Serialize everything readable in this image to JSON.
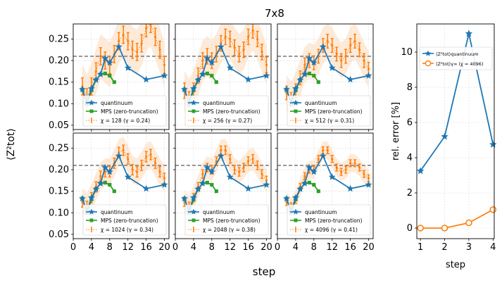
{
  "figure": {
    "title": "7x8",
    "ylabel": "⟨Z²tot⟩",
    "xlabel": "step"
  },
  "colors": {
    "quantinuum": "#1f77b4",
    "mps": "#2ca02c",
    "chi": "#ff7f0e",
    "band": "#fdd9b8",
    "dashed": "#808080",
    "grid": "#d8d8d8"
  },
  "chart_data": [
    {
      "type": "line",
      "panel": "chi-128",
      "xlim": [
        0,
        21
      ],
      "ylim": [
        0.04,
        0.285
      ],
      "yticks": [
        0.05,
        0.1,
        0.15,
        0.2,
        0.25
      ],
      "xticks": [
        0,
        4,
        8,
        12,
        16,
        20
      ],
      "reference_line": 0.21,
      "legend": [
        "quantinuum",
        "MPS (zero-truncation)",
        "χ = 128 (γ = 0.24)"
      ],
      "series": [
        {
          "name": "quantinuum",
          "x": [
            2,
            3,
            4,
            5,
            6,
            7,
            8,
            10,
            12,
            16,
            20
          ],
          "y": [
            0.133,
            0.102,
            0.135,
            0.155,
            0.168,
            0.205,
            0.195,
            0.232,
            0.183,
            0.156,
            0.165
          ]
        },
        {
          "name": "MPS (zero-truncation)",
          "x": [
            2,
            3,
            4,
            5,
            6,
            7,
            8,
            9
          ],
          "y": [
            0.133,
            0.1,
            0.131,
            0.155,
            0.168,
            0.17,
            0.165,
            0.15
          ]
        },
        {
          "name": "χ = 128 (γ = 0.24)",
          "x": [
            2,
            3,
            4,
            5,
            6,
            7,
            8,
            9,
            10,
            11,
            12,
            13,
            14,
            15,
            16,
            17,
            18,
            19,
            20
          ],
          "y": [
            0.14,
            0.115,
            0.14,
            0.175,
            0.21,
            0.2,
            0.19,
            0.215,
            0.245,
            0.26,
            0.245,
            0.225,
            0.22,
            0.24,
            0.275,
            0.285,
            0.255,
            0.225,
            0.19
          ],
          "err": [
            0.02,
            0.02,
            0.02,
            0.02,
            0.02,
            0.02,
            0.02,
            0.02,
            0.02,
            0.02,
            0.02,
            0.02,
            0.02,
            0.02,
            0.02,
            0.02,
            0.02,
            0.02,
            0.02
          ]
        }
      ]
    },
    {
      "type": "line",
      "panel": "chi-256",
      "xlim": [
        0,
        21
      ],
      "ylim": [
        0.04,
        0.285
      ],
      "reference_line": 0.21,
      "legend": [
        "quantinuum",
        "MPS (zero-truncation)",
        "χ = 256 (γ = 0.27)"
      ],
      "series": [
        {
          "name": "quantinuum",
          "x": [
            2,
            3,
            4,
            5,
            6,
            7,
            8,
            10,
            12,
            16,
            20
          ],
          "y": [
            0.133,
            0.102,
            0.135,
            0.155,
            0.168,
            0.205,
            0.195,
            0.232,
            0.183,
            0.156,
            0.165
          ]
        },
        {
          "name": "MPS (zero-truncation)",
          "x": [
            2,
            3,
            4,
            5,
            6,
            7,
            8,
            9
          ],
          "y": [
            0.133,
            0.1,
            0.131,
            0.155,
            0.168,
            0.17,
            0.165,
            0.15
          ]
        },
        {
          "name": "χ = 256 (γ = 0.27)",
          "x": [
            2,
            3,
            4,
            5,
            6,
            7,
            8,
            9,
            10,
            11,
            12,
            13,
            14,
            15,
            16,
            17,
            18,
            19,
            20
          ],
          "y": [
            0.13,
            0.11,
            0.13,
            0.165,
            0.2,
            0.21,
            0.2,
            0.215,
            0.24,
            0.255,
            0.25,
            0.23,
            0.215,
            0.225,
            0.255,
            0.27,
            0.25,
            0.22,
            0.19
          ],
          "err": [
            0.018,
            0.018,
            0.018,
            0.018,
            0.018,
            0.018,
            0.018,
            0.018,
            0.018,
            0.018,
            0.018,
            0.018,
            0.018,
            0.018,
            0.018,
            0.018,
            0.018,
            0.018,
            0.018
          ]
        }
      ]
    },
    {
      "type": "line",
      "panel": "chi-512",
      "xlim": [
        0,
        21
      ],
      "ylim": [
        0.04,
        0.285
      ],
      "reference_line": 0.21,
      "legend": [
        "quantinuum",
        "MPS (zero-truncation)",
        "χ = 512 (γ = 0.31)"
      ],
      "series": [
        {
          "name": "quantinuum",
          "x": [
            2,
            3,
            4,
            5,
            6,
            7,
            8,
            10,
            12,
            16,
            20
          ],
          "y": [
            0.133,
            0.102,
            0.135,
            0.155,
            0.168,
            0.205,
            0.195,
            0.232,
            0.183,
            0.156,
            0.165
          ]
        },
        {
          "name": "MPS (zero-truncation)",
          "x": [
            2,
            3,
            4,
            5,
            6,
            7,
            8,
            9
          ],
          "y": [
            0.133,
            0.1,
            0.131,
            0.155,
            0.168,
            0.17,
            0.165,
            0.15
          ]
        },
        {
          "name": "χ = 512 (γ = 0.31)",
          "x": [
            2,
            3,
            4,
            5,
            6,
            7,
            8,
            9,
            10,
            11,
            12,
            13,
            14,
            15,
            16,
            17,
            18,
            19,
            20
          ],
          "y": [
            0.125,
            0.11,
            0.13,
            0.16,
            0.19,
            0.2,
            0.195,
            0.21,
            0.235,
            0.245,
            0.235,
            0.215,
            0.2,
            0.21,
            0.235,
            0.245,
            0.225,
            0.2,
            0.18
          ],
          "err": [
            0.016,
            0.016,
            0.016,
            0.016,
            0.016,
            0.016,
            0.016,
            0.016,
            0.016,
            0.016,
            0.016,
            0.016,
            0.016,
            0.016,
            0.016,
            0.016,
            0.016,
            0.016,
            0.016
          ]
        }
      ]
    },
    {
      "type": "line",
      "panel": "chi-1024",
      "xlim": [
        0,
        21
      ],
      "ylim": [
        0.04,
        0.285
      ],
      "reference_line": 0.21,
      "legend": [
        "quantinuum",
        "MPS (zero-truncation)",
        "χ = 1024 (γ = 0.34)"
      ],
      "series": [
        {
          "name": "quantinuum",
          "x": [
            2,
            3,
            4,
            5,
            6,
            7,
            8,
            10,
            12,
            16,
            20
          ],
          "y": [
            0.133,
            0.102,
            0.135,
            0.155,
            0.168,
            0.205,
            0.195,
            0.232,
            0.183,
            0.156,
            0.165
          ]
        },
        {
          "name": "MPS (zero-truncation)",
          "x": [
            2,
            3,
            4,
            5,
            6,
            7,
            8,
            9
          ],
          "y": [
            0.133,
            0.1,
            0.131,
            0.155,
            0.168,
            0.17,
            0.165,
            0.15
          ]
        },
        {
          "name": "χ = 1024 (γ = 0.34)",
          "x": [
            2,
            3,
            4,
            5,
            6,
            7,
            8,
            9,
            10,
            11,
            12,
            13,
            14,
            15,
            16,
            17,
            18,
            19,
            20
          ],
          "y": [
            0.125,
            0.115,
            0.135,
            0.16,
            0.185,
            0.195,
            0.195,
            0.215,
            0.24,
            0.245,
            0.225,
            0.2,
            0.195,
            0.21,
            0.23,
            0.235,
            0.215,
            0.195,
            0.18
          ],
          "err": [
            0.012,
            0.012,
            0.012,
            0.012,
            0.012,
            0.012,
            0.012,
            0.012,
            0.012,
            0.012,
            0.012,
            0.012,
            0.012,
            0.012,
            0.012,
            0.012,
            0.012,
            0.012,
            0.012
          ]
        }
      ]
    },
    {
      "type": "line",
      "panel": "chi-2048",
      "xlim": [
        0,
        21
      ],
      "ylim": [
        0.04,
        0.285
      ],
      "reference_line": 0.21,
      "legend": [
        "quantinuum",
        "MPS (zero-truncation)",
        "χ = 2048 (γ = 0.38)"
      ],
      "series": [
        {
          "name": "quantinuum",
          "x": [
            2,
            3,
            4,
            5,
            6,
            7,
            8,
            10,
            12,
            16,
            20
          ],
          "y": [
            0.133,
            0.102,
            0.135,
            0.155,
            0.168,
            0.205,
            0.195,
            0.232,
            0.183,
            0.156,
            0.165
          ]
        },
        {
          "name": "MPS (zero-truncation)",
          "x": [
            2,
            3,
            4,
            5,
            6,
            7,
            8,
            9
          ],
          "y": [
            0.133,
            0.1,
            0.131,
            0.155,
            0.168,
            0.17,
            0.165,
            0.15
          ]
        },
        {
          "name": "χ = 2048 (γ = 0.38)",
          "x": [
            2,
            3,
            4,
            5,
            6,
            7,
            8,
            9,
            10,
            11,
            12,
            13,
            14,
            15,
            16,
            17,
            18,
            19,
            20
          ],
          "y": [
            0.125,
            0.115,
            0.135,
            0.16,
            0.19,
            0.205,
            0.2,
            0.22,
            0.245,
            0.245,
            0.225,
            0.2,
            0.195,
            0.205,
            0.22,
            0.225,
            0.21,
            0.19,
            0.175
          ],
          "err": [
            0.01,
            0.01,
            0.01,
            0.01,
            0.01,
            0.01,
            0.01,
            0.01,
            0.01,
            0.01,
            0.01,
            0.01,
            0.01,
            0.01,
            0.01,
            0.01,
            0.01,
            0.01,
            0.01
          ]
        }
      ]
    },
    {
      "type": "line",
      "panel": "chi-4096",
      "xlim": [
        0,
        21
      ],
      "ylim": [
        0.04,
        0.285
      ],
      "reference_line": 0.21,
      "legend": [
        "quantinuum",
        "MPS (zero-truncation)",
        "χ = 4096 (γ = 0.41)"
      ],
      "series": [
        {
          "name": "quantinuum",
          "x": [
            2,
            3,
            4,
            5,
            6,
            7,
            8,
            10,
            12,
            16,
            20
          ],
          "y": [
            0.133,
            0.102,
            0.135,
            0.155,
            0.168,
            0.205,
            0.195,
            0.232,
            0.183,
            0.156,
            0.165
          ]
        },
        {
          "name": "MPS (zero-truncation)",
          "x": [
            2,
            3,
            4,
            5,
            6,
            7,
            8,
            9
          ],
          "y": [
            0.133,
            0.1,
            0.131,
            0.155,
            0.168,
            0.17,
            0.165,
            0.15
          ]
        },
        {
          "name": "χ = 4096 (γ = 0.41)",
          "x": [
            2,
            3,
            4,
            5,
            6,
            7,
            8,
            9,
            10,
            11,
            12,
            13,
            14,
            15,
            16,
            17,
            18,
            19,
            20
          ],
          "y": [
            0.125,
            0.115,
            0.13,
            0.16,
            0.185,
            0.2,
            0.2,
            0.225,
            0.245,
            0.245,
            0.225,
            0.205,
            0.195,
            0.2,
            0.215,
            0.215,
            0.205,
            0.19,
            0.18
          ],
          "err": [
            0.008,
            0.008,
            0.008,
            0.008,
            0.008,
            0.008,
            0.008,
            0.008,
            0.008,
            0.008,
            0.008,
            0.008,
            0.008,
            0.008,
            0.008,
            0.008,
            0.008,
            0.008,
            0.008
          ]
        }
      ]
    },
    {
      "type": "line",
      "panel": "rel-error",
      "xlabel": "step",
      "ylabel": "rel. error [%]",
      "xlim": [
        0.85,
        4.05
      ],
      "ylim": [
        -0.6,
        11.6
      ],
      "xticks": [
        1,
        2,
        3,
        4
      ],
      "yticks": [
        0,
        2,
        4,
        6,
        8,
        10
      ],
      "legend": [
        "⟨Z²tot⟩quantinuum",
        "⟨Z²tot⟩γ∞ (χ = 4096)"
      ],
      "series": [
        {
          "name": "⟨Z²tot⟩quantinuum",
          "x": [
            1,
            2,
            3,
            4
          ],
          "y": [
            3.25,
            5.2,
            11.05,
            4.75
          ]
        },
        {
          "name": "⟨Z²tot⟩γ∞ (χ = 4096)",
          "x": [
            1,
            2,
            3,
            4
          ],
          "y": [
            0.0,
            0.0,
            0.3,
            1.05
          ]
        }
      ]
    }
  ]
}
